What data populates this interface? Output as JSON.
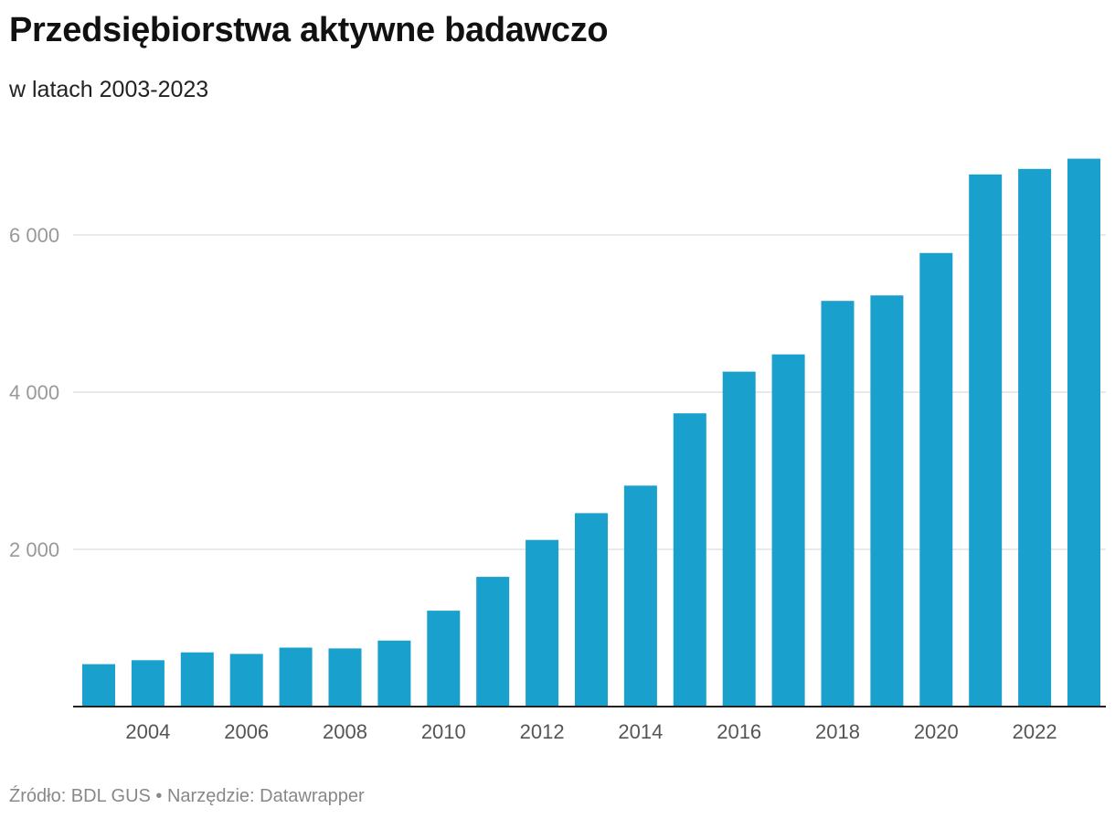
{
  "header": {
    "title": "Przedsiębiorstwa aktywne badawczo",
    "subtitle": "w latach 2003-2023"
  },
  "footer": {
    "source": "Źródło: BDL GUS • Narzędzie: Datawrapper"
  },
  "colors": {
    "bar": "#1aa0cc",
    "grid": "#e2e2e2",
    "axis": "#222222"
  },
  "chart_data": {
    "type": "bar",
    "title": "Przedsiębiorstwa aktywne badawczo",
    "subtitle": "w latach 2003-2023",
    "xlabel": "",
    "ylabel": "",
    "ylim": [
      0,
      7500
    ],
    "grid": true,
    "categories": [
      "2003",
      "2004",
      "2005",
      "2006",
      "2007",
      "2008",
      "2009",
      "2010",
      "2011",
      "2012",
      "2013",
      "2014",
      "2015",
      "2016",
      "2017",
      "2018",
      "2019",
      "2020",
      "2021",
      "2022",
      "2023"
    ],
    "values": [
      540,
      590,
      690,
      670,
      750,
      740,
      840,
      1220,
      1650,
      2120,
      2460,
      2810,
      3730,
      4260,
      4480,
      5160,
      5230,
      5770,
      6770,
      6840,
      6970
    ],
    "y_ticks": [
      2000,
      4000,
      6000
    ],
    "y_tick_labels": [
      "2 000",
      "4 000",
      "6 000"
    ],
    "x_tick_labels": [
      "2004",
      "2006",
      "2008",
      "2010",
      "2012",
      "2014",
      "2016",
      "2018",
      "2020",
      "2022"
    ]
  }
}
